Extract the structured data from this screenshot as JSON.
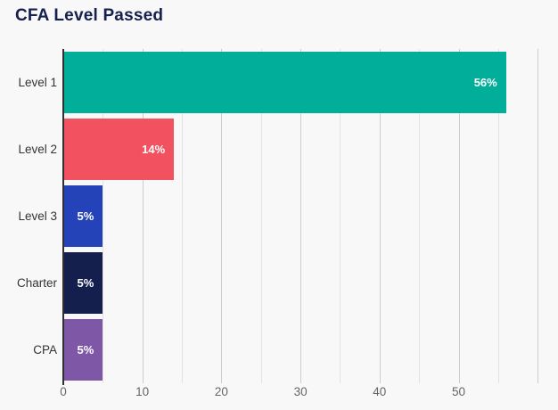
{
  "chart_data": {
    "type": "bar",
    "orientation": "horizontal",
    "title": "CFA Level Passed",
    "categories": [
      "Level 1",
      "Level 2",
      "Level 3",
      "Charter",
      "CPA"
    ],
    "values": [
      56,
      14,
      5,
      5,
      5
    ],
    "data_labels": [
      "56%",
      "14%",
      "5%",
      "5%",
      "5%"
    ],
    "bar_colors": [
      "#00ae99",
      "#f2515f",
      "#2543b8",
      "#151f4d",
      "#7e57a6"
    ],
    "x_ticks": [
      0,
      10,
      20,
      30,
      40,
      50
    ],
    "xlim": [
      0,
      61
    ],
    "grid_step": 5,
    "grid": "on",
    "legend": "none",
    "xlabel": "",
    "ylabel": ""
  },
  "colors": {
    "background": "#f8f8f8",
    "title_text": "#16204e",
    "axis_line": "#303030",
    "gridline_major": "#cccccc",
    "gridline_minor": "#e2e2e2",
    "tick_label": "#666666",
    "category_label": "#333333",
    "data_label": "#ffffff"
  }
}
